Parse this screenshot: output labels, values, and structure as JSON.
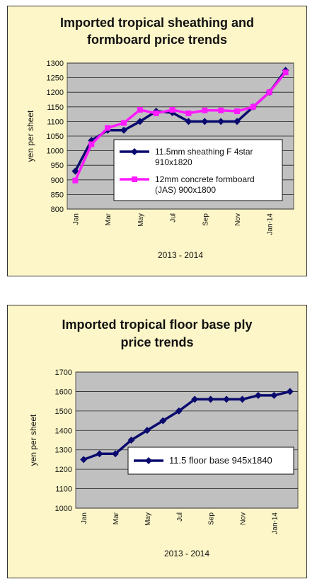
{
  "charts": {
    "sheathing": {
      "title_line1": "Imported tropical sheathing and",
      "title_line2": "formboard price trends"
    },
    "floorbase": {
      "title_line1": "Imported tropical floor base ply",
      "title_line2": "price trends"
    }
  },
  "chart_data": [
    {
      "type": "line",
      "title": "Imported tropical sheathing and formboard price trends",
      "xlabel": "2013 - 2014",
      "ylabel": "yen per sheet",
      "ylim": [
        800,
        1300
      ],
      "y_ticks": [
        800,
        850,
        900,
        950,
        1000,
        1050,
        1100,
        1150,
        1200,
        1250,
        1300
      ],
      "x_tick_labels": [
        "Jan",
        "Mar",
        "May",
        "Jul",
        "Sep",
        "Nov",
        "Jan-14"
      ],
      "grid": true,
      "legend_position": "right",
      "series": [
        {
          "name": "11.5mm sheathing F 4star 910x1820",
          "color": "#0a0a6e",
          "marker": "diamond",
          "values": [
            930,
            1035,
            1070,
            1070,
            1100,
            1135,
            1130,
            1100,
            1100,
            1100,
            1100,
            1150,
            1200,
            1275
          ]
        },
        {
          "name": "12mm concrete formboard (JAS) 900x1800",
          "color": "#ff1aff",
          "marker": "square",
          "values": [
            898,
            1022,
            1078,
            1095,
            1140,
            1128,
            1140,
            1128,
            1138,
            1138,
            1135,
            1150,
            1200,
            1268
          ]
        }
      ],
      "legend_lines": [
        [
          "11.5mm sheathing F 4star",
          "910x1820"
        ],
        [
          "12mm concrete formboard",
          "(JAS) 900x1800"
        ]
      ]
    },
    {
      "type": "line",
      "title": "Imported tropical floor base ply price trends",
      "xlabel": "2013 - 2014",
      "ylabel": "yen per sheet",
      "ylim": [
        1000,
        1700
      ],
      "y_ticks": [
        1000,
        1100,
        1200,
        1300,
        1400,
        1500,
        1600,
        1700
      ],
      "x_tick_labels": [
        "Jan",
        "Mar",
        "May",
        "Jul",
        "Sep",
        "Nov",
        "Jan-14"
      ],
      "grid": true,
      "legend_position": "right",
      "series": [
        {
          "name": "11.5 floor base 945x1840",
          "color": "#0a0a6e",
          "marker": "diamond",
          "values": [
            1250,
            1280,
            1280,
            1350,
            1400,
            1450,
            1500,
            1560,
            1560,
            1560,
            1560,
            1580,
            1580,
            1600
          ]
        }
      ],
      "legend_lines": [
        [
          "11.5 floor base 945x1840"
        ]
      ]
    }
  ]
}
